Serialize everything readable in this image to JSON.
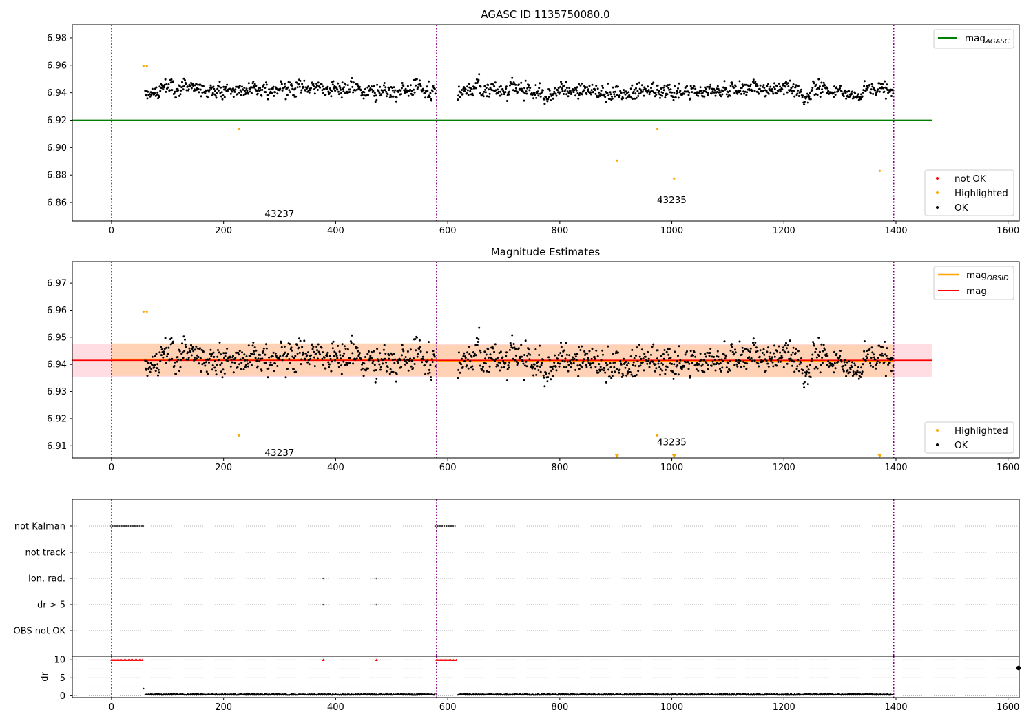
{
  "chart_data": [
    {
      "type": "scatter",
      "title": "AGASC ID 1135750080.0",
      "xlim": [
        -70,
        1620
      ],
      "ylim": [
        6.8465,
        6.9895
      ],
      "xticks": [
        0,
        200,
        400,
        600,
        800,
        1000,
        1200,
        1400,
        1600
      ],
      "yticks": [
        6.86,
        6.88,
        6.9,
        6.92,
        6.94,
        6.96,
        6.98
      ],
      "grid": false,
      "obsid_boundaries": [
        0,
        580,
        1396
      ],
      "obsid_labels": [
        {
          "text": "43237",
          "x": 290,
          "y": 6.852
        },
        {
          "text": "43235",
          "x": 990,
          "y": 6.862
        }
      ],
      "mag_agasc": {
        "value": 6.92,
        "x_range": [
          -70,
          1465
        ]
      },
      "segments": [
        {
          "x_range": [
            60,
            578
          ],
          "base": 6.942,
          "noise": 0.006
        },
        {
          "x_range": [
            618,
            1395
          ],
          "base": 6.941,
          "noise": 0.006
        }
      ],
      "highlighted_points": [
        [
          57,
          6.9595
        ],
        [
          63,
          6.9595
        ],
        [
          228,
          6.9135
        ],
        [
          902,
          6.8905
        ],
        [
          974,
          6.9135
        ],
        [
          1004,
          6.8775
        ],
        [
          1371,
          6.883
        ]
      ],
      "legend_top": {
        "position": "upper right",
        "entries": [
          {
            "label": "mag",
            "sub": "AGASC",
            "color": "#008000"
          }
        ]
      },
      "legend_bottom": {
        "position": "lower right",
        "entries": [
          {
            "label": "not OK",
            "color": "#ff0000"
          },
          {
            "label": "Highlighted",
            "color": "#ffa500"
          },
          {
            "label": "OK",
            "color": "#000000"
          }
        ]
      }
    },
    {
      "type": "scatter",
      "title": "Magnitude Estimates",
      "xlim": [
        -70,
        1620
      ],
      "ylim": [
        6.9055,
        6.9779
      ],
      "xticks": [
        0,
        200,
        400,
        600,
        800,
        1000,
        1200,
        1400,
        1600
      ],
      "yticks": [
        6.91,
        6.92,
        6.93,
        6.94,
        6.95,
        6.96,
        6.97
      ],
      "grid": false,
      "obsid_boundaries": [
        0,
        580,
        1396
      ],
      "obsid_labels": [
        {
          "text": "43237",
          "x": 290,
          "y": 6.9075
        },
        {
          "text": "43235",
          "x": 990,
          "y": 6.9115
        }
      ],
      "mag": {
        "value": 6.9415,
        "band": [
          6.9355,
          6.9475
        ],
        "x_range": [
          -70,
          1465
        ],
        "color": "#ff0000"
      },
      "mag_obsid": [
        {
          "value": 6.9418,
          "band": [
            6.9358,
            6.9478
          ],
          "x_range": [
            0,
            580
          ]
        },
        {
          "value": 6.9412,
          "band": [
            6.9352,
            6.9472
          ],
          "x_range": [
            580,
            1396
          ]
        }
      ],
      "highlighted_points": [
        [
          57,
          6.9595
        ],
        [
          63,
          6.9595
        ],
        [
          228,
          6.9138
        ],
        [
          974,
          6.9138
        ]
      ],
      "offscale_markers": [
        902,
        1004,
        1371
      ],
      "legend_top": {
        "position": "upper right",
        "entries": [
          {
            "label": "mag",
            "sub": "OBSID",
            "color": "#ffa500"
          },
          {
            "label": "mag",
            "color": "#ff0000"
          }
        ]
      },
      "legend_bottom": {
        "position": "lower right",
        "entries": [
          {
            "label": "Highlighted",
            "color": "#ffa500"
          },
          {
            "label": "OK",
            "color": "#000000"
          }
        ]
      }
    },
    {
      "type": "scatter",
      "title": "",
      "xlim": [
        -70,
        1620
      ],
      "xticks": [
        0,
        200,
        400,
        600,
        800,
        1000,
        1200,
        1400,
        1600
      ],
      "flag_categories": [
        "not Kalman",
        "not track",
        "Ion. rad.",
        "dr > 5",
        "OBS not OK"
      ],
      "flags": {
        "not Kalman": [
          [
            0,
            57
          ],
          [
            580,
            615
          ]
        ],
        "not track": [],
        "Ion. rad.": [
          378,
          473
        ],
        "dr > 5": [
          378,
          473
        ],
        "OBS not OK": []
      },
      "dr": {
        "ylabel": "dr",
        "ylim": [
          -0.5,
          11
        ],
        "yticks": [
          0,
          5,
          10
        ],
        "saturated_value": 10,
        "saturated_ranges": [
          [
            0,
            57
          ],
          [
            580,
            615
          ]
        ],
        "saturated_points": [
          378,
          473
        ],
        "baseline_value": 0.3,
        "baseline_ranges": [
          [
            60,
            578
          ],
          [
            618,
            1395
          ]
        ],
        "outlier_points": [
          [
            57,
            2
          ]
        ]
      }
    }
  ]
}
